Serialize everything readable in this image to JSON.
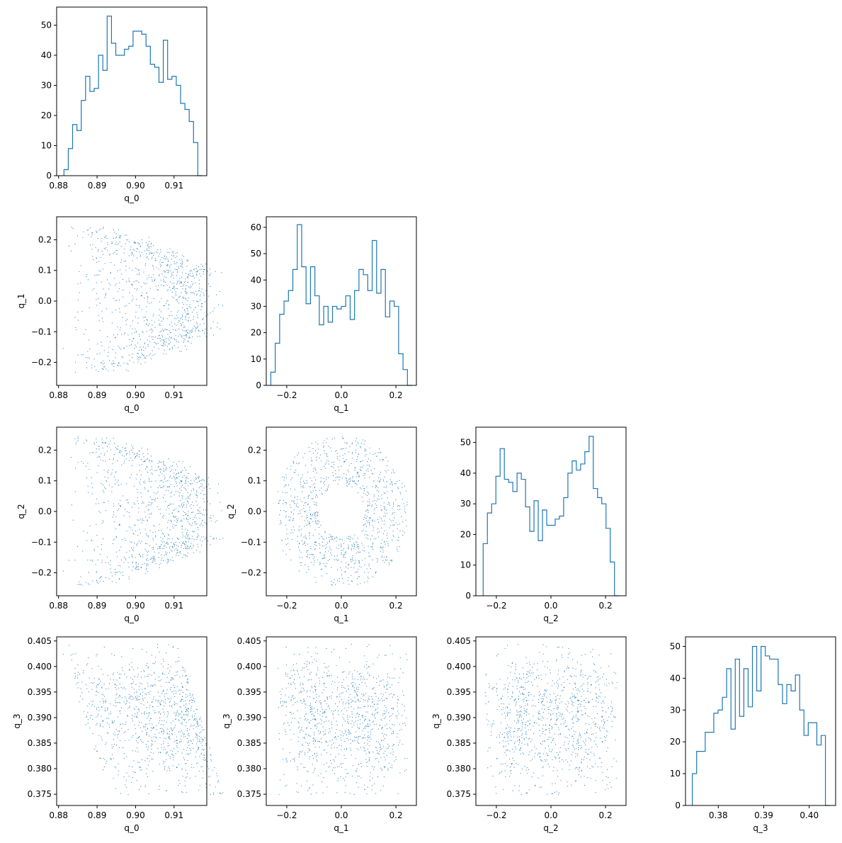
{
  "chart_data": {
    "type": "corner",
    "color": "#1f77b4",
    "variables": [
      "q_0",
      "q_1",
      "q_2",
      "q_3"
    ],
    "ranges": {
      "q_0": [
        0.8795,
        0.9185
      ],
      "q_1": [
        -0.275,
        0.275
      ],
      "q_2": [
        -0.275,
        0.275
      ],
      "q_3": [
        0.3728,
        0.4058
      ]
    },
    "ticks": {
      "q_0": {
        "values": [
          0.88,
          0.89,
          0.9,
          0.91
        ],
        "labels": [
          "0.88",
          "0.89",
          "0.90",
          "0.91"
        ]
      },
      "q_1": {
        "values": [
          -0.2,
          0.0,
          0.2
        ],
        "labels": [
          "−0.2",
          "0.0",
          "0.2"
        ]
      },
      "q_2": {
        "values": [
          -0.2,
          0.0,
          0.2
        ],
        "labels": [
          "−0.2",
          "0.0",
          "0.2"
        ]
      },
      "q_3": {
        "values": [
          0.38,
          0.39,
          0.4
        ],
        "labels": [
          "0.38",
          "0.39",
          "0.40"
        ]
      }
    },
    "y_ticks": {
      "q_1": {
        "values": [
          -0.2,
          -0.1,
          0.0,
          0.1,
          0.2
        ],
        "labels": [
          "−0.2",
          "−0.1",
          "0.0",
          "0.1",
          "0.2"
        ]
      },
      "q_2": {
        "values": [
          -0.2,
          -0.1,
          0.0,
          0.1,
          0.2
        ],
        "labels": [
          "−0.2",
          "−0.1",
          "0.0",
          "0.1",
          "0.2"
        ]
      },
      "q_3": {
        "values": [
          0.375,
          0.38,
          0.385,
          0.39,
          0.395,
          0.4,
          0.405
        ],
        "labels": [
          "0.375",
          "0.380",
          "0.385",
          "0.390",
          "0.395",
          "0.400",
          "0.405"
        ]
      }
    },
    "histograms": [
      {
        "variable": "q_0",
        "bin_range": [
          0.8814,
          0.9173
        ],
        "ylim": [
          0,
          56
        ],
        "count_ticks": [
          0,
          10,
          20,
          30,
          40,
          50
        ],
        "counts": [
          2,
          9,
          17,
          15,
          25,
          33,
          28,
          29,
          40,
          35,
          53,
          44,
          40,
          40,
          42,
          43,
          48,
          48,
          47,
          43,
          37,
          36,
          31,
          45,
          32,
          33,
          30,
          24,
          22,
          18,
          11,
          0
        ]
      },
      {
        "variable": "q_1",
        "bin_range": [
          -0.2583,
          0.2583
        ],
        "ylim": [
          0,
          64
        ],
        "count_ticks": [
          0,
          10,
          20,
          30,
          40,
          50,
          60
        ],
        "counts": [
          5,
          16,
          27,
          32,
          36,
          44,
          61,
          45,
          31,
          45,
          34,
          23,
          30,
          24,
          30,
          29,
          30,
          34,
          25,
          36,
          44,
          42,
          36,
          55,
          35,
          44,
          26,
          32,
          30,
          12,
          6,
          0
        ]
      },
      {
        "variable": "q_2",
        "bin_range": [
          -0.2483,
          0.2483
        ],
        "ylim": [
          0,
          55
        ],
        "count_ticks": [
          0,
          10,
          20,
          30,
          40,
          50
        ],
        "counts": [
          17,
          27,
          30,
          39,
          48,
          38,
          37,
          34,
          40,
          38,
          29,
          21,
          31,
          18,
          28,
          23,
          23,
          25,
          26,
          32,
          40,
          44,
          41,
          43,
          47,
          52,
          35,
          32,
          30,
          22,
          11,
          0
        ]
      },
      {
        "variable": "q_3",
        "bin_range": [
          0.3743,
          0.4045
        ],
        "ylim": [
          0,
          53
        ],
        "count_ticks": [
          0,
          10,
          20,
          30,
          40,
          50
        ],
        "counts": [
          10,
          17,
          17,
          23,
          23,
          29,
          30,
          34,
          43,
          24,
          46,
          28,
          43,
          31,
          50,
          36,
          50,
          47,
          46,
          46,
          38,
          32,
          38,
          36,
          41,
          30,
          22,
          26,
          26,
          19,
          22,
          0
        ]
      }
    ],
    "scatter_pairs": [
      {
        "x": "q_0",
        "y": "q_1",
        "n": 1000
      },
      {
        "x": "q_0",
        "y": "q_2",
        "n": 1000
      },
      {
        "x": "q_1",
        "y": "q_2",
        "n": 1000
      },
      {
        "x": "q_0",
        "y": "q_3",
        "n": 1000
      },
      {
        "x": "q_1",
        "y": "q_3",
        "n": 1000
      },
      {
        "x": "q_2",
        "y": "q_3",
        "n": 1000
      }
    ]
  }
}
